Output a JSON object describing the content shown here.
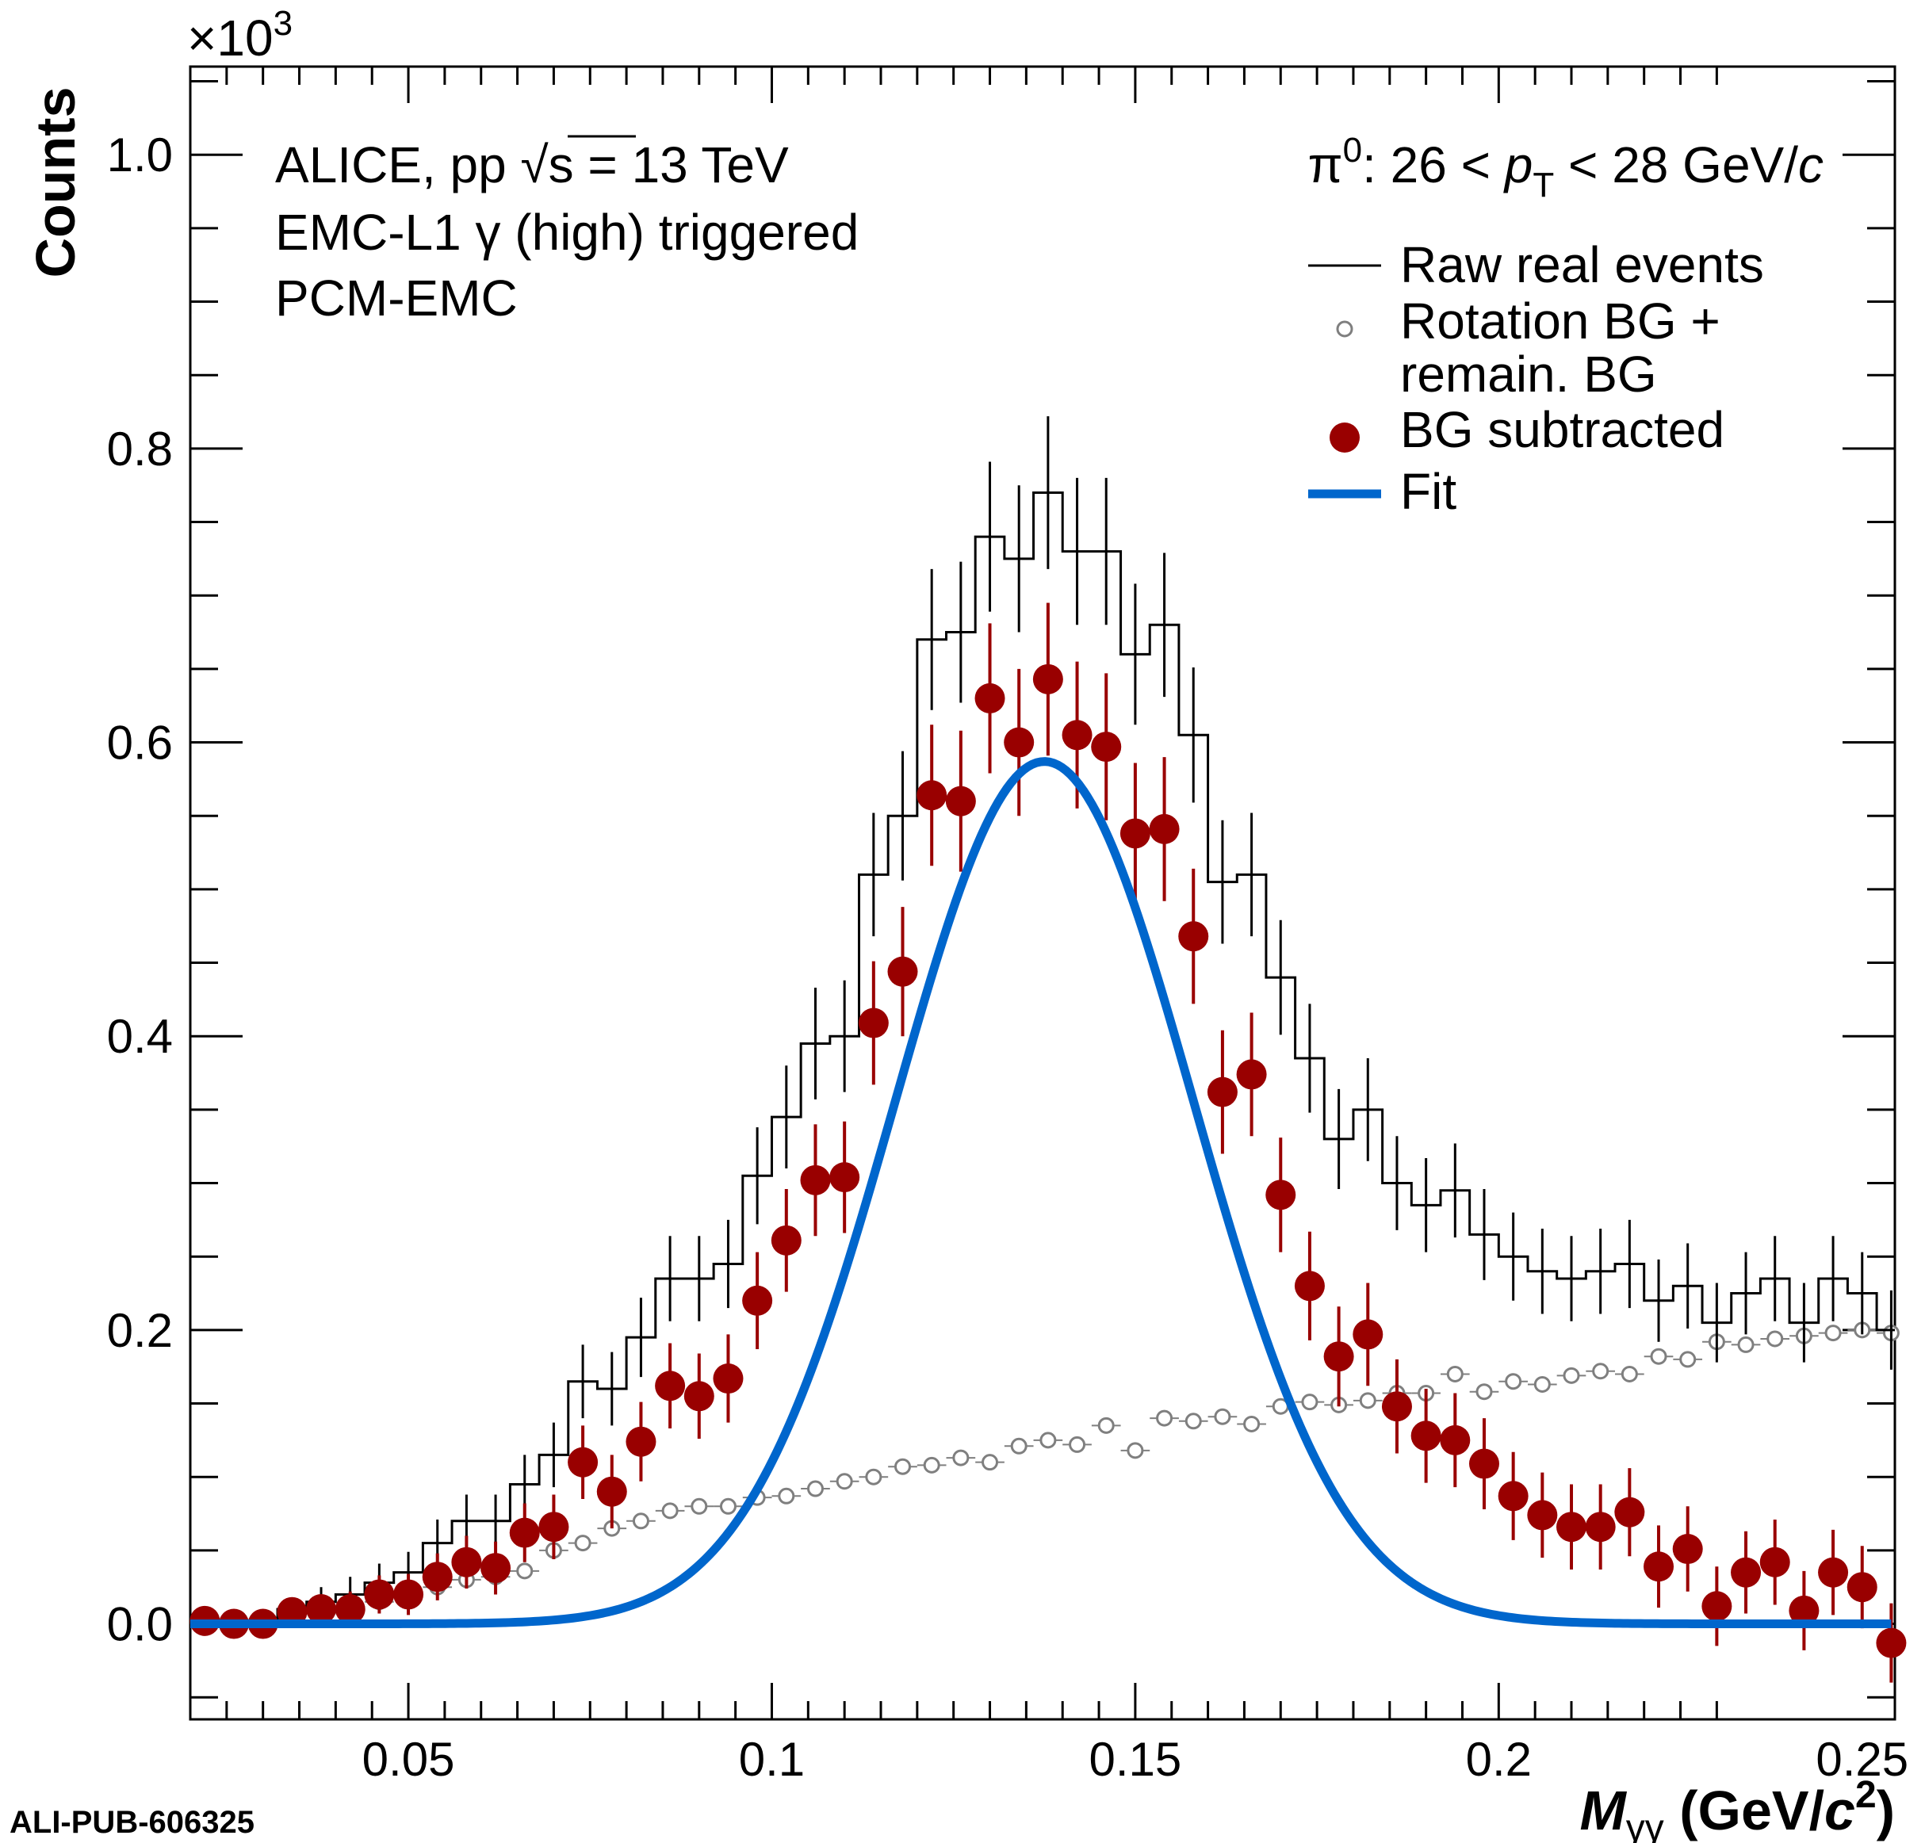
{
  "chart_data": {
    "type": "scatter",
    "xlabel": "M_γγ (GeV/c²)",
    "xlabel_main": "M",
    "xlabel_sub": "γγ",
    "xlabel_rest": " (GeV/",
    "xlabel_c": "c",
    "xlabel_sup": "2",
    "xlabel_close": ")",
    "ylabel": "Counts",
    "y_multiplier": "×10",
    "y_multiplier_exp": "3",
    "xlim": [
      0.02,
      0.2545
    ],
    "ylim": [
      -0.065,
      1.06
    ],
    "x_ticks": [
      0.05,
      0.1,
      0.15,
      0.2,
      0.25
    ],
    "x_tick_labels": [
      "0.05",
      "0.1",
      "0.15",
      "0.2",
      "0.25"
    ],
    "y_ticks": [
      0.0,
      0.2,
      0.4,
      0.6,
      0.8,
      1.0
    ],
    "y_tick_labels": [
      "0.0",
      "0.2",
      "0.4",
      "0.6",
      "0.8",
      "1.0"
    ],
    "annotations": {
      "line1_a": "ALICE, pp ",
      "line1_sqrt": "√",
      "line1_b": "s = 13 TeV",
      "line2": "EMC-L1 γ (high) triggered",
      "line3": "PCM-EMC",
      "pt_pi": "π",
      "pt_pi_sup": "0",
      "pt_a": ":  26 < ",
      "pt_p": "p",
      "pt_T": "T",
      "pt_b": " <  28 GeV/",
      "pt_c": "c"
    },
    "legend": [
      {
        "label": "Raw real events",
        "style": "line"
      },
      {
        "label": "Rotation BG +",
        "label2": "remain. BG",
        "style": "open-circle"
      },
      {
        "label": "BG subtracted",
        "style": "filled-circle"
      },
      {
        "label": "Fit",
        "style": "thick-line"
      }
    ],
    "legend_position": "top-right",
    "grid": false,
    "colors": {
      "raw": "#000000",
      "bg": "#7f7f7f",
      "sub": "#990000",
      "fit": "#0066cc"
    },
    "series": [
      {
        "name": "Raw real events",
        "bin_width": 0.004,
        "x": [
          0.022,
          0.026,
          0.03,
          0.034,
          0.038,
          0.042,
          0.046,
          0.05,
          0.054,
          0.058,
          0.062,
          0.066,
          0.07,
          0.074,
          0.078,
          0.082,
          0.086,
          0.09,
          0.094,
          0.098,
          0.102,
          0.106,
          0.11,
          0.114,
          0.118,
          0.122,
          0.126,
          0.13,
          0.134,
          0.138,
          0.142,
          0.146,
          0.15,
          0.154,
          0.158,
          0.162,
          0.166,
          0.17,
          0.174,
          0.178,
          0.182,
          0.186,
          0.19,
          0.194,
          0.198,
          0.202,
          0.206,
          0.21,
          0.214,
          0.218,
          0.222,
          0.226,
          0.23,
          0.234,
          0.238,
          0.242,
          0.246,
          0.25,
          0.254
        ],
        "y": [
          0.001,
          0.002,
          0.002,
          0.01,
          0.015,
          0.02,
          0.028,
          0.035,
          0.055,
          0.07,
          0.07,
          0.095,
          0.115,
          0.165,
          0.16,
          0.195,
          0.235,
          0.235,
          0.245,
          0.305,
          0.345,
          0.395,
          0.4,
          0.51,
          0.55,
          0.67,
          0.675,
          0.74,
          0.725,
          0.77,
          0.73,
          0.73,
          0.66,
          0.68,
          0.605,
          0.505,
          0.51,
          0.44,
          0.385,
          0.33,
          0.35,
          0.3,
          0.285,
          0.295,
          0.265,
          0.25,
          0.24,
          0.235,
          0.24,
          0.245,
          0.22,
          0.23,
          0.205,
          0.225,
          0.235,
          0.205,
          0.235,
          0.225,
          0.2
        ],
        "err": [
          0.004,
          0.005,
          0.006,
          0.008,
          0.01,
          0.012,
          0.013,
          0.014,
          0.016,
          0.018,
          0.018,
          0.02,
          0.022,
          0.025,
          0.025,
          0.027,
          0.029,
          0.029,
          0.03,
          0.033,
          0.035,
          0.038,
          0.038,
          0.042,
          0.044,
          0.048,
          0.048,
          0.051,
          0.05,
          0.052,
          0.05,
          0.05,
          0.048,
          0.049,
          0.046,
          0.042,
          0.042,
          0.039,
          0.037,
          0.034,
          0.035,
          0.032,
          0.032,
          0.032,
          0.031,
          0.03,
          0.029,
          0.029,
          0.029,
          0.03,
          0.028,
          0.029,
          0.027,
          0.028,
          0.029,
          0.027,
          0.029,
          0.028,
          0.027
        ]
      },
      {
        "name": "Rotation BG + remain. BG",
        "x": [
          0.022,
          0.026,
          0.03,
          0.034,
          0.038,
          0.042,
          0.046,
          0.05,
          0.054,
          0.058,
          0.062,
          0.066,
          0.07,
          0.074,
          0.078,
          0.082,
          0.086,
          0.09,
          0.094,
          0.098,
          0.102,
          0.106,
          0.11,
          0.114,
          0.118,
          0.122,
          0.126,
          0.13,
          0.134,
          0.138,
          0.142,
          0.146,
          0.15,
          0.154,
          0.158,
          0.162,
          0.166,
          0.17,
          0.174,
          0.178,
          0.182,
          0.186,
          0.19,
          0.194,
          0.198,
          0.202,
          0.206,
          0.21,
          0.214,
          0.218,
          0.222,
          0.226,
          0.23,
          0.234,
          0.238,
          0.242,
          0.246,
          0.25,
          0.254
        ],
        "y": [
          0.001,
          0.002,
          0.003,
          0.005,
          0.007,
          0.01,
          0.015,
          0.02,
          0.025,
          0.03,
          0.032,
          0.036,
          0.05,
          0.055,
          0.065,
          0.07,
          0.077,
          0.08,
          0.08,
          0.086,
          0.087,
          0.092,
          0.097,
          0.1,
          0.107,
          0.108,
          0.113,
          0.11,
          0.121,
          0.125,
          0.122,
          0.135,
          0.118,
          0.14,
          0.138,
          0.141,
          0.136,
          0.148,
          0.151,
          0.149,
          0.152,
          0.157,
          0.157,
          0.17,
          0.158,
          0.165,
          0.163,
          0.169,
          0.172,
          0.17,
          0.182,
          0.18,
          0.192,
          0.19,
          0.194,
          0.196,
          0.198,
          0.2,
          0.198
        ],
        "err": [
          0.002,
          0.002,
          0.002,
          0.003,
          0.003,
          0.003,
          0.003,
          0.003,
          0.003,
          0.003,
          0.003,
          0.003,
          0.003,
          0.003,
          0.003,
          0.003,
          0.003,
          0.003,
          0.003,
          0.003,
          0.003,
          0.003,
          0.003,
          0.003,
          0.003,
          0.003,
          0.003,
          0.003,
          0.003,
          0.003,
          0.003,
          0.003,
          0.003,
          0.003,
          0.003,
          0.003,
          0.003,
          0.003,
          0.003,
          0.003,
          0.003,
          0.003,
          0.003,
          0.003,
          0.003,
          0.003,
          0.003,
          0.003,
          0.003,
          0.003,
          0.003,
          0.003,
          0.003,
          0.003,
          0.003,
          0.003,
          0.003,
          0.003,
          0.003
        ]
      },
      {
        "name": "BG subtracted",
        "x": [
          0.022,
          0.026,
          0.03,
          0.034,
          0.038,
          0.042,
          0.046,
          0.05,
          0.054,
          0.058,
          0.062,
          0.066,
          0.07,
          0.074,
          0.078,
          0.082,
          0.086,
          0.09,
          0.094,
          0.098,
          0.102,
          0.106,
          0.11,
          0.114,
          0.118,
          0.122,
          0.126,
          0.13,
          0.134,
          0.138,
          0.142,
          0.146,
          0.15,
          0.154,
          0.158,
          0.162,
          0.166,
          0.17,
          0.174,
          0.178,
          0.182,
          0.186,
          0.19,
          0.194,
          0.198,
          0.202,
          0.206,
          0.21,
          0.214,
          0.218,
          0.222,
          0.226,
          0.23,
          0.234,
          0.238,
          0.242,
          0.246,
          0.25,
          0.254
        ],
        "y": [
          0.002,
          0.0,
          0.0,
          0.008,
          0.01,
          0.01,
          0.02,
          0.02,
          0.032,
          0.042,
          0.038,
          0.062,
          0.066,
          0.11,
          0.09,
          0.124,
          0.162,
          0.155,
          0.167,
          0.22,
          0.261,
          0.302,
          0.304,
          0.409,
          0.444,
          0.564,
          0.56,
          0.63,
          0.6,
          0.643,
          0.605,
          0.597,
          0.538,
          0.541,
          0.468,
          0.362,
          0.374,
          0.292,
          0.23,
          0.182,
          0.197,
          0.148,
          0.128,
          0.125,
          0.109,
          0.087,
          0.074,
          0.066,
          0.066,
          0.076,
          0.039,
          0.051,
          0.012,
          0.035,
          0.042,
          0.009,
          0.035,
          0.025,
          -0.013
        ],
        "err": [
          0.004,
          0.005,
          0.006,
          0.008,
          0.01,
          0.012,
          0.013,
          0.014,
          0.016,
          0.018,
          0.018,
          0.02,
          0.022,
          0.025,
          0.025,
          0.027,
          0.029,
          0.029,
          0.03,
          0.033,
          0.035,
          0.038,
          0.038,
          0.042,
          0.044,
          0.048,
          0.048,
          0.051,
          0.05,
          0.052,
          0.05,
          0.05,
          0.048,
          0.049,
          0.046,
          0.042,
          0.042,
          0.039,
          0.037,
          0.034,
          0.035,
          0.032,
          0.032,
          0.032,
          0.031,
          0.03,
          0.029,
          0.029,
          0.029,
          0.03,
          0.028,
          0.029,
          0.027,
          0.028,
          0.029,
          0.027,
          0.029,
          0.028,
          0.027
        ]
      },
      {
        "name": "Fit",
        "function": "gaussian",
        "amplitude": 0.587,
        "mean": 0.1375,
        "sigma": 0.0205,
        "x_range": [
          0.02,
          0.254
        ]
      }
    ]
  },
  "watermark": "ALI-PUB-606325"
}
